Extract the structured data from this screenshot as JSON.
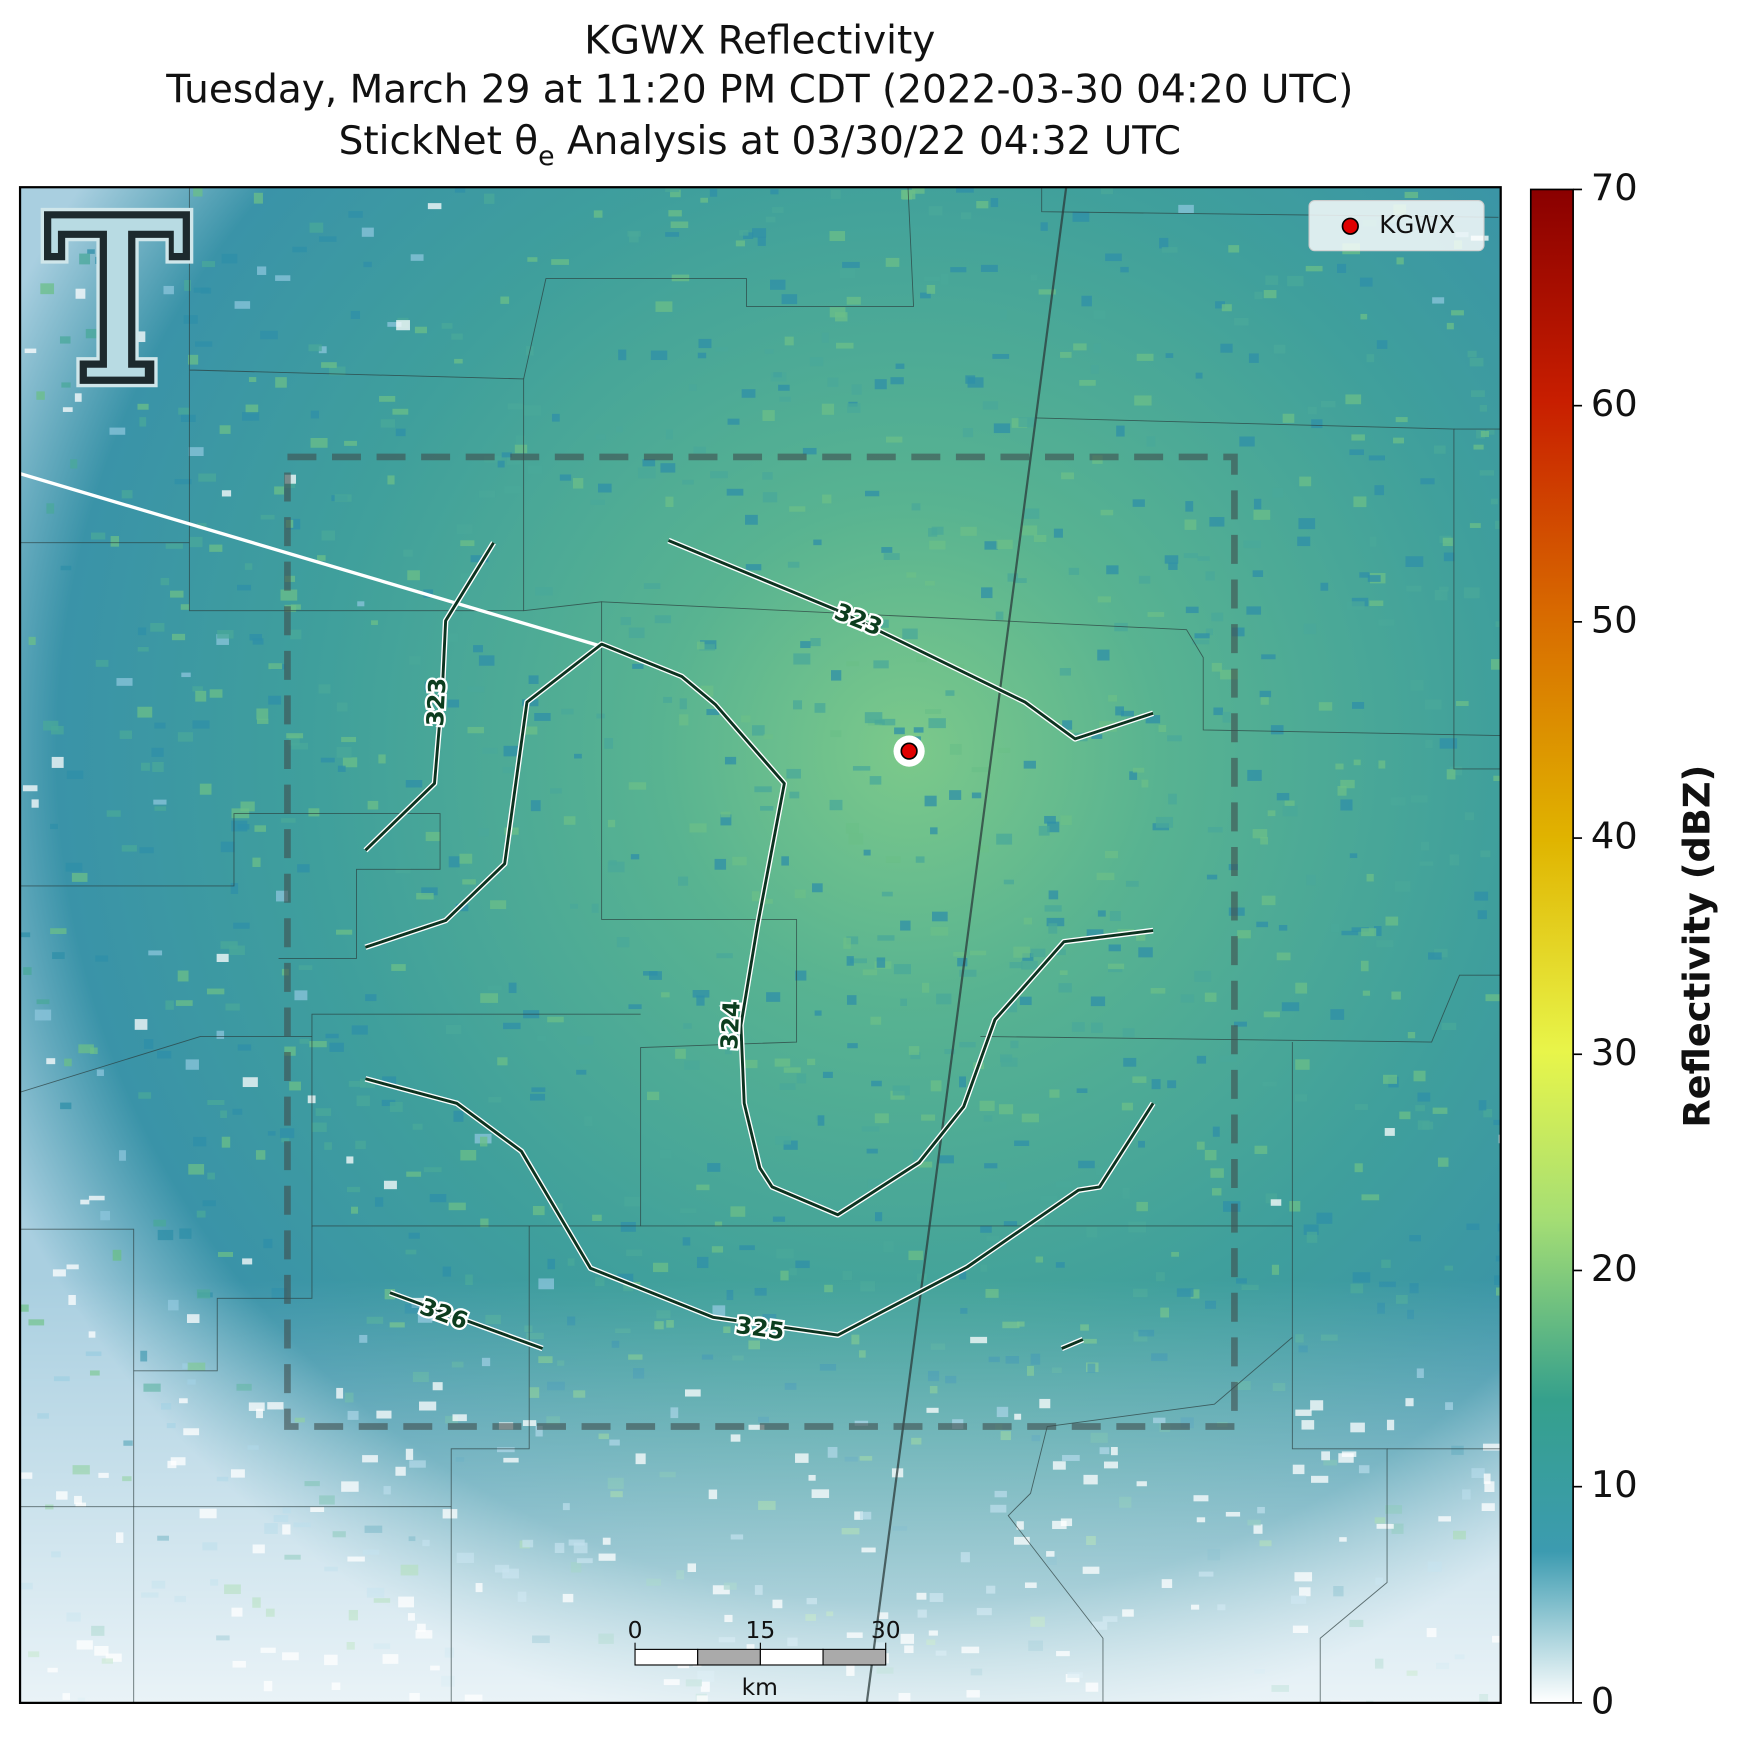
{
  "title": {
    "line1": "KGWX Reflectivity",
    "line2": "Tuesday, March 29 at 11:20 PM CDT (2022-03-30 04:20 UTC)",
    "line3": [
      "StickNet θ",
      "e",
      " Analysis at 03/30/22 04:32 UTC"
    ]
  },
  "legend": {
    "label": "KGWX",
    "color": "#e00000"
  },
  "colorbar": {
    "label": "Reflectivity (dBZ)",
    "lim": [
      0,
      70
    ],
    "ticks": [
      0,
      10,
      20,
      30,
      40,
      50,
      60,
      70
    ]
  },
  "contours": [
    {
      "label": "323"
    },
    {
      "label": "323"
    },
    {
      "label": "324"
    },
    {
      "label": "325"
    },
    {
      "label": "326"
    }
  ],
  "scale_bar": {
    "ticks": [
      0,
      15,
      30
    ],
    "unit": "km"
  }
}
